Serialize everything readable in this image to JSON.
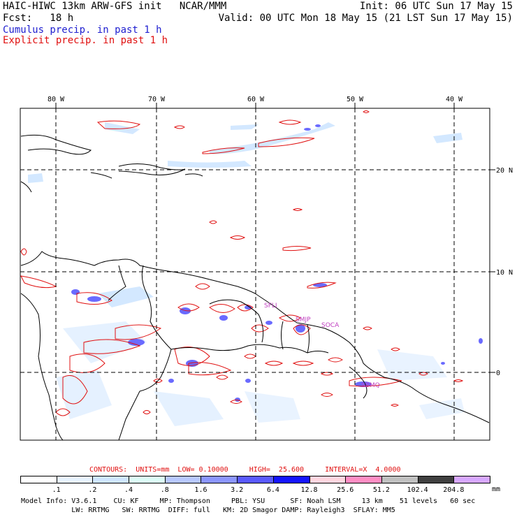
{
  "header": {
    "line1_left": "HAIC-HIWC 13km ARW-GFS init   NCAR/MMM",
    "line1_right": "Init: 06 UTC Sun 17 May 15",
    "line2_left": "Fcst:   18 h",
    "line2_right": "Valid: 00 UTC Mon 18 May 15 (21 LST Sun 17 May 15)",
    "legend_cumulus": "Cumulus precip. in past 1 h",
    "legend_explicit": "Explicit precip. in past 1 h"
  },
  "map": {
    "lon_labels": [
      "80 W",
      "70 W",
      "60 W",
      "50 W",
      "40 W"
    ],
    "lat_labels": [
      "20 N",
      "10 N",
      "0"
    ],
    "stations": [
      "SFLI",
      "SMJP",
      "SOCA",
      "SBMQ"
    ],
    "colors": {
      "cumulus": "#6a6aff",
      "explicit": "#e01010",
      "coast": "#000000"
    }
  },
  "contours": {
    "text": "CONTOURS:  UNITS=mm  LOW= 0.10000     HIGH=  25.600     INTERVAL=X  4.0000"
  },
  "colorbar": {
    "labels": [
      ".1",
      ".2",
      ".4",
      ".8",
      "1.6",
      "3.2",
      "6.4",
      "12.8",
      "25.6",
      "51.2",
      "102.4",
      "204.8"
    ],
    "units": "mm",
    "colors": [
      "#ffffff",
      "#e8f4ff",
      "#cfe6ff",
      "#ddfdf8",
      "#b8c8ff",
      "#8c96ff",
      "#5a5aff",
      "#1414ff",
      "#ffd6e0",
      "#ff8ec4",
      "#c0c0c0",
      "#404040",
      "#d8a8ff"
    ]
  },
  "model_info": {
    "line1": "Model Info: V3.6.1    CU: KF     MP: Thompson     PBL: YSU      SF: Noah LSM     13 km    51 levels   60 sec",
    "line2": "            LW: RRTMG   SW: RRTMG  DIFF: full   KM: 2D Smagor DAMP: Rayleigh3  SFLAY: MM5"
  }
}
